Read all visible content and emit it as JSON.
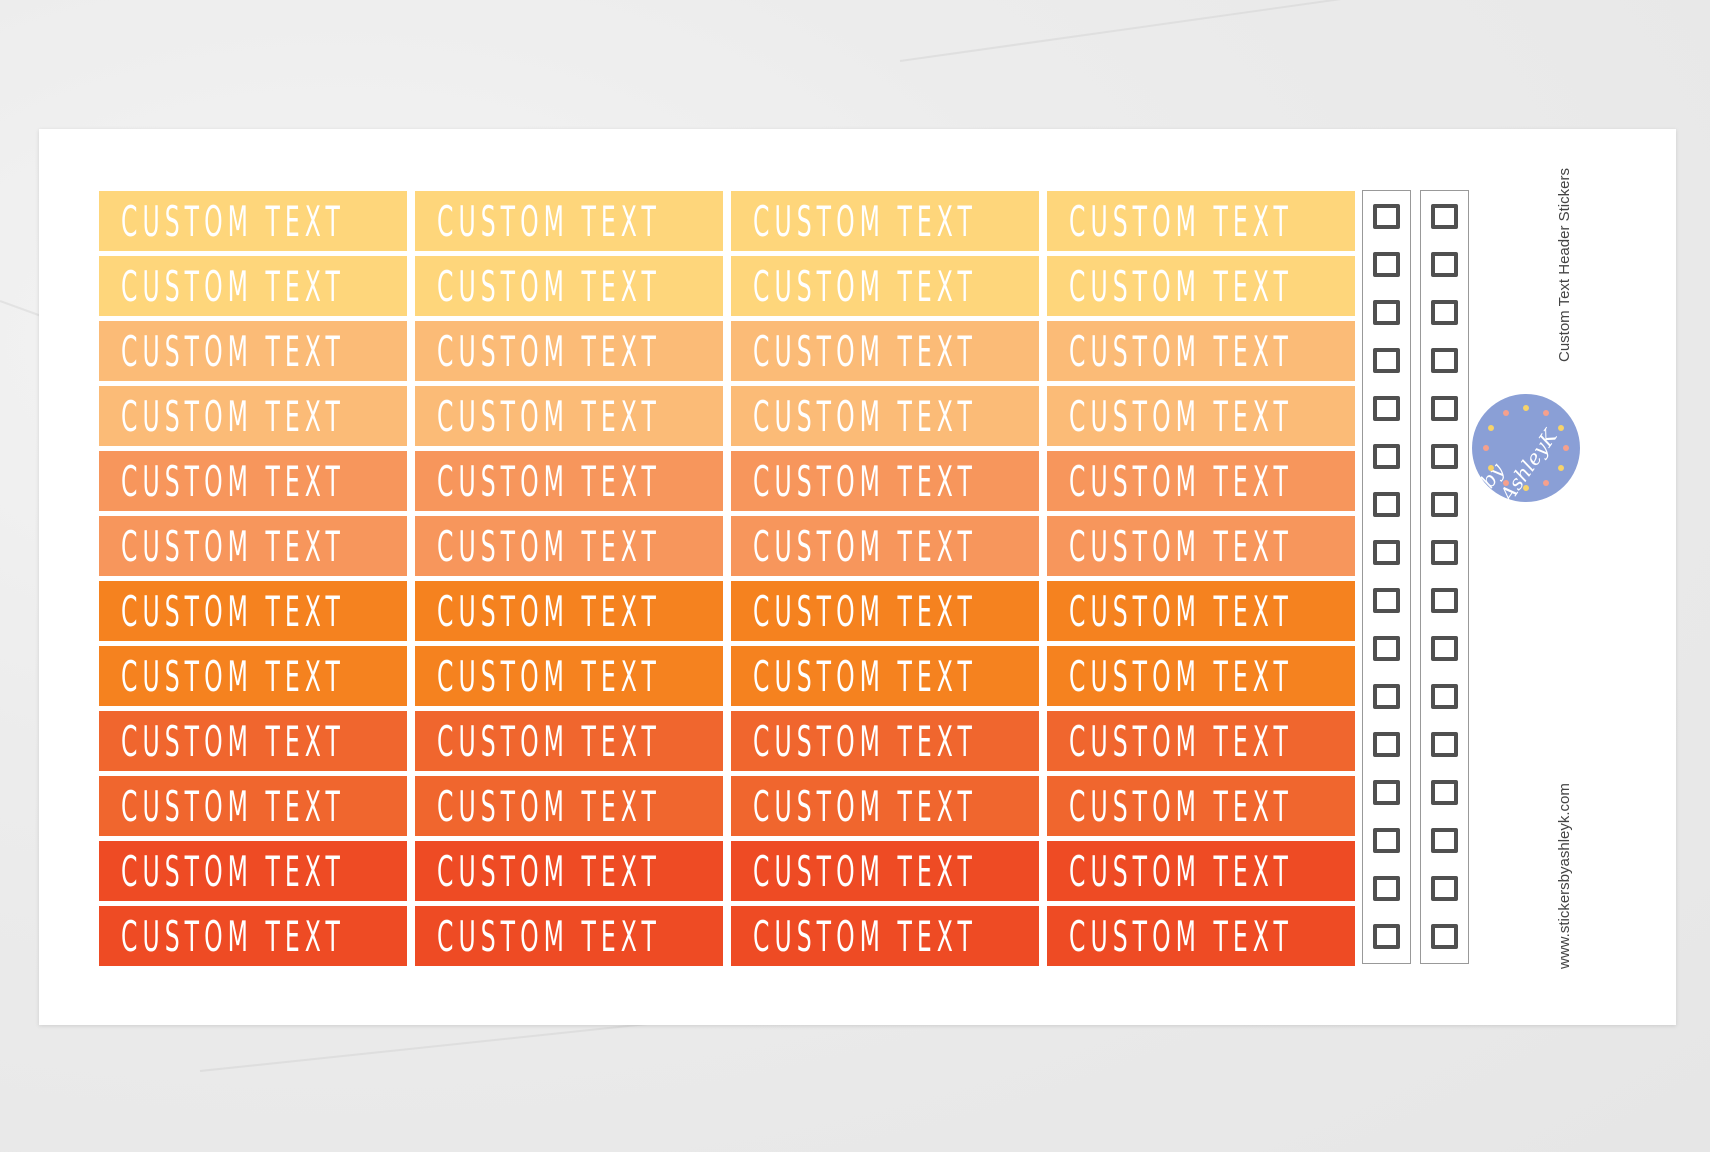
{
  "sheet": {
    "sticker_label": "CUSTOM TEXT",
    "columns": 4,
    "row_colors": [
      "#FED67B",
      "#FED67B",
      "#FBBB77",
      "#FBBB77",
      "#F7965C",
      "#F7965C",
      "#F5821F",
      "#F5821F",
      "#F0662E",
      "#F0662E",
      "#EE4B24",
      "#EE4B24"
    ],
    "checkbox_columns": 2,
    "checkboxes_per_column": 16,
    "title": "Custom Text Header  Stickers",
    "website": "www.stickersbyashleyk.com",
    "logo": {
      "text": "by AshleyK",
      "color": "#8A9FD6"
    }
  }
}
